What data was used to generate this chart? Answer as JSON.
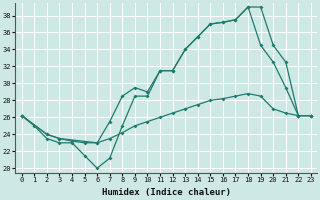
{
  "xlabel": "Humidex (Indice chaleur)",
  "xlim": [
    -0.5,
    23.5
  ],
  "ylim": [
    19.5,
    39.5
  ],
  "yticks": [
    20,
    22,
    24,
    26,
    28,
    30,
    32,
    34,
    36,
    38
  ],
  "xticks": [
    0,
    1,
    2,
    3,
    4,
    5,
    6,
    7,
    8,
    9,
    10,
    11,
    12,
    13,
    14,
    15,
    16,
    17,
    18,
    19,
    20,
    21,
    22,
    23
  ],
  "bg_color": "#cde8e5",
  "grid_color": "#ffffff",
  "line_color": "#1e7b6e",
  "line1_x": [
    0,
    1,
    2,
    3,
    4,
    5,
    6,
    7,
    8,
    9,
    10,
    11,
    12,
    13,
    14,
    15,
    16,
    17,
    18,
    19,
    20,
    21,
    22,
    23
  ],
  "line1_y": [
    26.2,
    25.0,
    23.5,
    23.0,
    23.0,
    21.5,
    20.0,
    21.2,
    25.0,
    28.5,
    28.5,
    31.5,
    31.5,
    34.0,
    35.5,
    37.0,
    37.2,
    37.5,
    39.0,
    34.5,
    32.5,
    29.5,
    26.2,
    26.2
  ],
  "line2_x": [
    0,
    2,
    3,
    6,
    7,
    8,
    9,
    10,
    11,
    12,
    13,
    14,
    15,
    16,
    17,
    18,
    19,
    20,
    21,
    22,
    23
  ],
  "line2_y": [
    26.2,
    24.0,
    23.5,
    23.0,
    25.5,
    28.5,
    29.5,
    29.0,
    31.5,
    31.5,
    34.0,
    35.5,
    37.0,
    37.2,
    37.5,
    39.0,
    39.0,
    34.5,
    32.5,
    26.2,
    26.2
  ],
  "line3_x": [
    0,
    2,
    3,
    4,
    5,
    6,
    7,
    8,
    9,
    10,
    11,
    12,
    13,
    14,
    15,
    16,
    17,
    18,
    19,
    20,
    21,
    22,
    23
  ],
  "line3_y": [
    26.2,
    24.0,
    23.5,
    23.2,
    23.0,
    23.0,
    23.5,
    24.2,
    25.0,
    25.5,
    26.0,
    26.5,
    27.0,
    27.5,
    28.0,
    28.2,
    28.5,
    28.8,
    28.5,
    27.0,
    26.5,
    26.2,
    26.2
  ]
}
